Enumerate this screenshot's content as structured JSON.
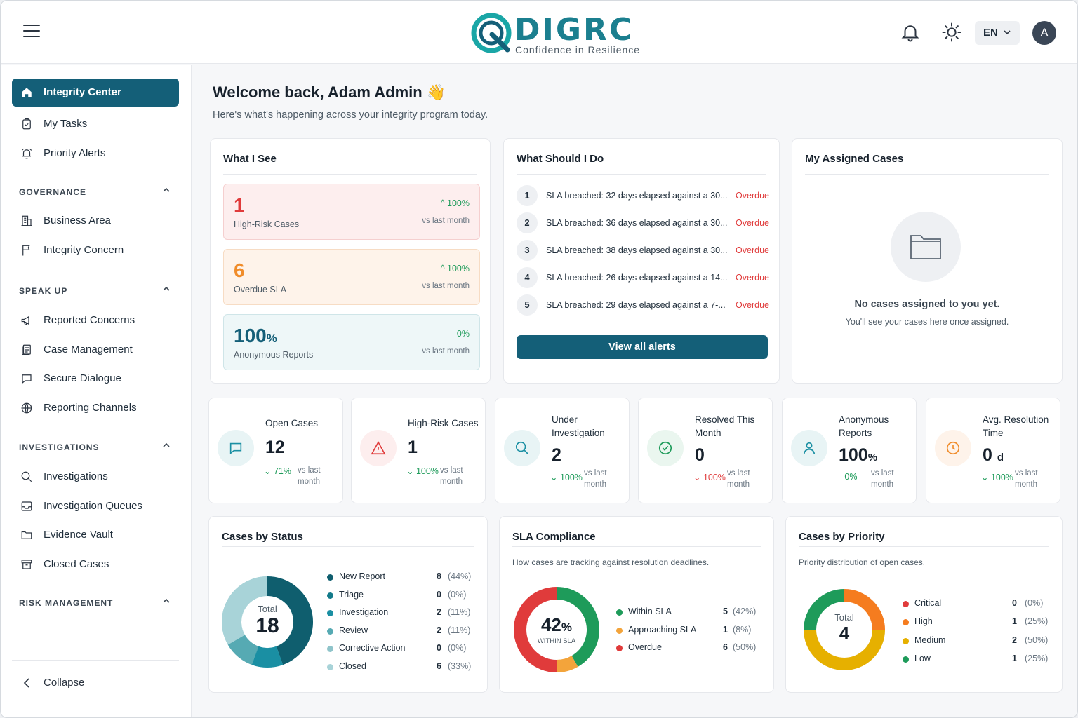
{
  "brand": {
    "name": "DIGRC",
    "tagline": "Confidence in Resilience"
  },
  "topbar": {
    "language": "EN",
    "avatar": "A"
  },
  "sidebar": {
    "top_items": [
      {
        "label": "Integrity Center"
      },
      {
        "label": "My Tasks"
      },
      {
        "label": "Priority Alerts"
      }
    ],
    "sections": [
      {
        "title": "GOVERNANCE",
        "items": [
          {
            "label": "Business Area"
          },
          {
            "label": "Integrity Concern"
          }
        ]
      },
      {
        "title": "SPEAK UP",
        "items": [
          {
            "label": "Reported Concerns"
          },
          {
            "label": "Case Management"
          },
          {
            "label": "Secure Dialogue"
          },
          {
            "label": "Reporting Channels"
          }
        ]
      },
      {
        "title": "INVESTIGATIONS",
        "items": [
          {
            "label": "Investigations"
          },
          {
            "label": "Investigation Queues"
          },
          {
            "label": "Evidence Vault"
          },
          {
            "label": "Closed Cases"
          }
        ]
      },
      {
        "title": "RISK MANAGEMENT",
        "items": []
      }
    ],
    "collapse_label": "Collapse"
  },
  "header": {
    "welcome": "Welcome back, Adam Admin 👋",
    "subtitle": "Here's what's happening across your integrity program today."
  },
  "what_i_see": {
    "title": "What I See",
    "metrics": [
      {
        "value": "1",
        "label": "High-Risk Cases",
        "change": "^ 100%",
        "vs": "vs last month"
      },
      {
        "value": "6",
        "label": "Overdue SLA",
        "change": "^ 100%",
        "vs": "vs last month"
      },
      {
        "value": "100",
        "unit": "%",
        "label": "Anonymous Reports",
        "change": "– 0%",
        "vs": "vs last month"
      }
    ]
  },
  "what_should_i_do": {
    "title": "What Should I Do",
    "alerts": [
      {
        "num": "1",
        "text": "SLA breached: 32 days elapsed against a 30...",
        "status": "Overdue"
      },
      {
        "num": "2",
        "text": "SLA breached: 36 days elapsed against a 30...",
        "status": "Overdue"
      },
      {
        "num": "3",
        "text": "SLA breached: 38 days elapsed against a 30...",
        "status": "Overdue"
      },
      {
        "num": "4",
        "text": "SLA breached: 26 days elapsed against a 14...",
        "status": "Overdue"
      },
      {
        "num": "5",
        "text": "SLA breached: 29 days elapsed against a 7-...",
        "status": "Overdue"
      }
    ],
    "button": "View all alerts"
  },
  "assigned": {
    "title": "My Assigned Cases",
    "empty_title": "No cases assigned to you yet.",
    "empty_sub": "You'll see your cases here once assigned."
  },
  "kpis": [
    {
      "label": "Open Cases",
      "value": "12",
      "unit": "",
      "change": "⌄ 71%",
      "vs": "vs last month"
    },
    {
      "label": "High-Risk Cases",
      "value": "1",
      "unit": "",
      "change": "⌄ 100%",
      "vs": "vs last month"
    },
    {
      "label": "Under Investigation",
      "value": "2",
      "unit": "",
      "change": "⌄ 100%",
      "vs": "vs last month"
    },
    {
      "label": "Resolved This Month",
      "value": "0",
      "unit": "",
      "change": "⌄ 100%",
      "vs": "vs last month"
    },
    {
      "label": "Anonymous Reports",
      "value": "100",
      "unit": "%",
      "change": "– 0%",
      "vs": "vs last month"
    },
    {
      "label": "Avg. Resolution Time",
      "value": "0",
      "unit": "d",
      "change": "⌄ 100%",
      "vs": "vs last month"
    }
  ],
  "cases_by_status": {
    "title": "Cases by Status",
    "total_label": "Total",
    "total": "18",
    "items": [
      {
        "name": "New Report",
        "count": 8,
        "pct": "(44%)",
        "color": "#0f5e6e"
      },
      {
        "name": "Triage",
        "count": 0,
        "pct": "(0%)",
        "color": "#137a8a"
      },
      {
        "name": "Investigation",
        "count": 2,
        "pct": "(11%)",
        "color": "#1a8fa3"
      },
      {
        "name": "Review",
        "count": 2,
        "pct": "(11%)",
        "color": "#56aab3"
      },
      {
        "name": "Corrective Action",
        "count": 0,
        "pct": "(0%)",
        "color": "#8fc4ca"
      },
      {
        "name": "Closed",
        "count": 6,
        "pct": "(33%)",
        "color": "#a8d3d8"
      }
    ]
  },
  "sla": {
    "title": "SLA Compliance",
    "desc": "How cases are tracking against resolution deadlines.",
    "center_value": "42",
    "center_unit": "%",
    "center_label": "WITHIN SLA",
    "items": [
      {
        "name": "Within SLA",
        "count": 5,
        "pct": "(42%)",
        "color": "#1e9b5a"
      },
      {
        "name": "Approaching SLA",
        "count": 1,
        "pct": "(8%)",
        "color": "#f3a43b"
      },
      {
        "name": "Overdue",
        "count": 6,
        "pct": "(50%)",
        "color": "#e03b3b"
      }
    ]
  },
  "priority": {
    "title": "Cases by Priority",
    "desc": "Priority distribution of open cases.",
    "total_label": "Total",
    "total": "4",
    "items": [
      {
        "name": "Critical",
        "count": 0,
        "pct": "(0%)",
        "color": "#e03b3b"
      },
      {
        "name": "High",
        "count": 1,
        "pct": "(25%)",
        "color": "#f57c1f"
      },
      {
        "name": "Medium",
        "count": 2,
        "pct": "(50%)",
        "color": "#e6b000"
      },
      {
        "name": "Low",
        "count": 1,
        "pct": "(25%)",
        "color": "#1e9b5a"
      }
    ]
  }
}
